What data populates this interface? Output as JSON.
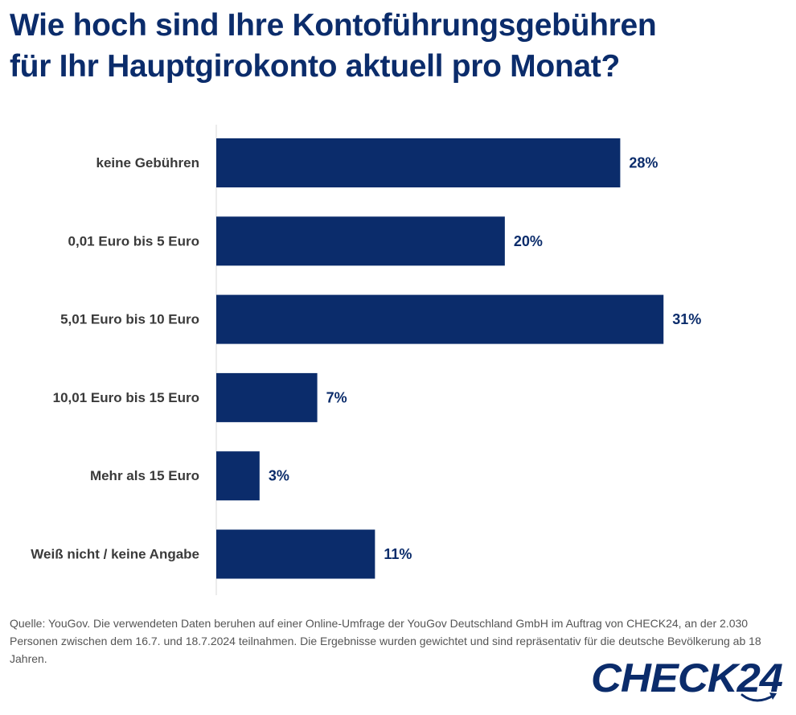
{
  "title_line1": "Wie hoch sind Ihre Kontoführungsgebühren",
  "title_line2": "für Ihr Hauptgirokonto aktuell pro Monat?",
  "colors": {
    "bar": "#0b2c6b",
    "text": "#0b2c6b",
    "axis": "#d9d9d9",
    "source": "#555555",
    "logo": "#0b2c6b"
  },
  "chart_data": {
    "type": "bar",
    "orientation": "horizontal",
    "categories": [
      "keine Gebühren",
      "0,01 Euro bis 5 Euro",
      "5,01 Euro bis 10 Euro",
      "10,01 Euro bis 15 Euro",
      "Mehr als 15 Euro",
      "Weiß nicht / keine Angabe"
    ],
    "values": [
      28,
      20,
      31,
      7,
      3,
      11
    ],
    "value_labels": [
      "28%",
      "20%",
      "31%",
      "7%",
      "3%",
      "11%"
    ],
    "unit": "%",
    "xlim": [
      0,
      35
    ],
    "grid": false
  },
  "source_text": "Quelle: YouGov. Die verwendeten Daten beruhen auf einer Online-Umfrage der YouGov Deutschland GmbH im Auftrag von CHECK24, an der 2.030 Personen zwischen dem 16.7. und 18.7.2024 teilnahmen. Die Ergebnisse wurden gewichtet und sind repräsentativ für die deutsche Bevölkerung ab 18 Jahren.",
  "logo_text": "CHECK24"
}
